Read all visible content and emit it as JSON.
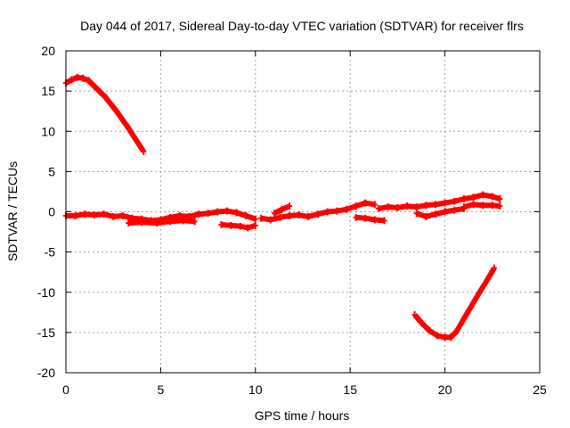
{
  "chart_data": {
    "type": "scatter",
    "title": "Day 044 of 2017, Sidereal Day-to-day VTEC variation (SDTVAR) for receiver flrs",
    "xlabel": "GPS time / hours",
    "ylabel": "SDTVAR / TECUs",
    "xlim": [
      0,
      25
    ],
    "ylim": [
      -20,
      20
    ],
    "xticks": [
      0,
      5,
      10,
      15,
      20,
      25
    ],
    "yticks": [
      -20,
      -15,
      -10,
      -5,
      0,
      5,
      10,
      15,
      20
    ],
    "grid": true,
    "legend": "none",
    "series_color": "#ff0000",
    "series": [
      {
        "name": "upper-arc",
        "x": [
          0.0,
          0.3,
          0.6,
          0.9,
          1.2,
          1.5,
          1.8,
          2.1,
          2.4,
          2.7,
          3.0,
          3.3,
          3.6,
          3.9,
          4.1
        ],
        "y": [
          16.0,
          16.4,
          16.7,
          16.6,
          16.3,
          15.6,
          14.9,
          14.2,
          13.3,
          12.4,
          11.4,
          10.4,
          9.3,
          8.2,
          7.5
        ]
      },
      {
        "name": "baseline-1",
        "x": [
          0.0,
          0.5,
          1.0,
          1.5,
          2.0,
          2.5,
          3.0,
          3.5,
          4.0,
          4.5,
          5.0,
          5.5,
          6.0,
          6.5,
          7.0,
          7.5,
          8.0,
          8.5,
          9.0,
          9.5,
          10.0
        ],
        "y": [
          -0.5,
          -0.5,
          -0.3,
          -0.4,
          -0.3,
          -0.6,
          -0.5,
          -0.8,
          -0.9,
          -1.1,
          -1.0,
          -0.7,
          -0.5,
          -0.6,
          -0.3,
          -0.2,
          0.0,
          0.1,
          -0.1,
          -0.5,
          -0.9
        ]
      },
      {
        "name": "baseline-2",
        "x": [
          3.3,
          4.0,
          4.8,
          5.5,
          6.2,
          6.8
        ],
        "y": [
          -1.4,
          -1.3,
          -1.4,
          -1.2,
          -1.1,
          -1.2
        ]
      },
      {
        "name": "dip-segment",
        "x": [
          8.2,
          8.7,
          9.2,
          9.6,
          10.0
        ],
        "y": [
          -1.6,
          -1.7,
          -1.8,
          -2.0,
          -1.7
        ]
      },
      {
        "name": "baseline-3",
        "x": [
          10.3,
          10.8,
          11.3,
          11.8,
          12.3,
          12.8,
          13.3,
          13.8,
          14.3,
          14.8,
          15.3,
          15.8,
          16.3
        ],
        "y": [
          -0.8,
          -1.0,
          -0.7,
          -0.5,
          -0.4,
          -0.6,
          -0.3,
          0.0,
          0.1,
          0.3,
          0.7,
          1.1,
          0.9
        ]
      },
      {
        "name": "short-rise",
        "x": [
          11.0,
          11.4,
          11.8
        ],
        "y": [
          -0.2,
          0.3,
          0.7
        ]
      },
      {
        "name": "mid-segment",
        "x": [
          15.3,
          15.8,
          16.3,
          16.8
        ],
        "y": [
          -0.7,
          -0.8,
          -1.0,
          -1.1
        ]
      },
      {
        "name": "baseline-4",
        "x": [
          16.5,
          17.0,
          17.5,
          18.0,
          18.5,
          19.0,
          19.5,
          20.0,
          20.5,
          21.0,
          21.5,
          22.0,
          22.5,
          22.9
        ],
        "y": [
          0.4,
          0.6,
          0.5,
          0.7,
          0.6,
          0.8,
          0.9,
          1.1,
          1.3,
          1.6,
          1.8,
          2.1,
          1.9,
          1.6
        ]
      },
      {
        "name": "baseline-5",
        "x": [
          18.5,
          19.0,
          19.5,
          20.0,
          20.5,
          21.0
        ],
        "y": [
          -0.2,
          -0.6,
          -0.3,
          0.0,
          0.2,
          0.4
        ]
      },
      {
        "name": "baseline-6",
        "x": [
          21.0,
          21.5,
          22.0,
          22.5,
          22.9
        ],
        "y": [
          0.6,
          0.9,
          0.8,
          0.8,
          0.7
        ]
      },
      {
        "name": "lower-arc",
        "x": [
          18.4,
          18.8,
          19.2,
          19.6,
          20.0,
          20.3,
          20.6,
          21.0,
          21.4,
          21.8,
          22.2,
          22.6
        ],
        "y": [
          -12.8,
          -13.9,
          -14.8,
          -15.4,
          -15.6,
          -15.6,
          -14.9,
          -13.3,
          -11.7,
          -10.1,
          -8.6,
          -7.0
        ]
      }
    ]
  }
}
